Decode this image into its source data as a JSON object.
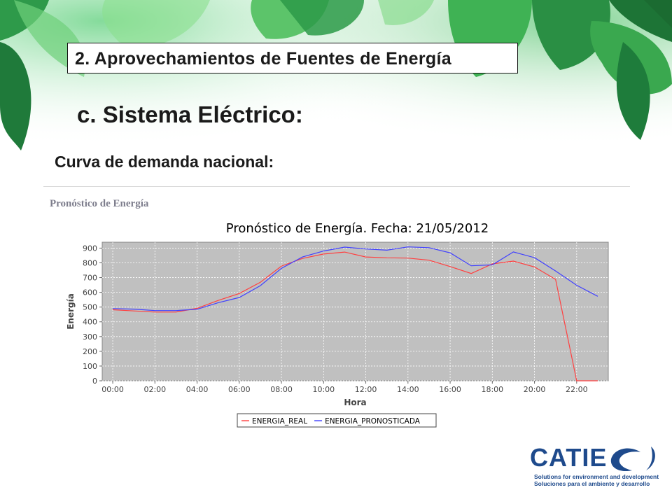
{
  "slide": {
    "section_label": "2. Aprovechamientos de Fuentes de Energía",
    "title": "c. Sistema Eléctrico:",
    "subtitle": "Curva de demanda nacional:",
    "panel_title": "Pronóstico de Energía"
  },
  "logo": {
    "name": "CATIE",
    "tagline_en": "Solutions for environment and development",
    "tagline_es": "Soluciones para el ambiente y desarrollo",
    "color": "#1e4a8c"
  },
  "chart_data": {
    "type": "line",
    "title": "Pronóstico de Energía. Fecha: 21/05/2012",
    "xlabel": "Hora",
    "ylabel": "Energía",
    "x": [
      "00:00",
      "01:00",
      "02:00",
      "03:00",
      "04:00",
      "05:00",
      "06:00",
      "07:00",
      "08:00",
      "09:00",
      "10:00",
      "11:00",
      "12:00",
      "13:00",
      "14:00",
      "15:00",
      "16:00",
      "17:00",
      "18:00",
      "19:00",
      "20:00",
      "21:00",
      "22:00",
      "23:00"
    ],
    "x_tick_labels": [
      "00:00",
      "02:00",
      "04:00",
      "06:00",
      "08:00",
      "10:00",
      "12:00",
      "14:00",
      "16:00",
      "18:00",
      "20:00",
      "22:00"
    ],
    "y_tick_labels": [
      "0",
      "100",
      "200",
      "300",
      "400",
      "500",
      "600",
      "700",
      "800",
      "900"
    ],
    "ylim": [
      0,
      940
    ],
    "grid": true,
    "legend_position": "bottom",
    "plot_background": "#c0c0c0",
    "series": [
      {
        "name": "ENERGIA_REAL",
        "color": "#ff4040",
        "values": [
          482,
          474,
          466,
          466,
          492,
          545,
          592,
          668,
          778,
          830,
          860,
          873,
          840,
          834,
          832,
          818,
          775,
          728,
          793,
          812,
          772,
          688,
          0,
          0
        ]
      },
      {
        "name": "ENERGIA_PRONOSTICADA",
        "color": "#4040ff",
        "values": [
          490,
          486,
          476,
          476,
          485,
          530,
          565,
          645,
          763,
          840,
          880,
          907,
          894,
          886,
          908,
          903,
          868,
          780,
          786,
          874,
          835,
          745,
          648,
          573
        ]
      }
    ]
  }
}
